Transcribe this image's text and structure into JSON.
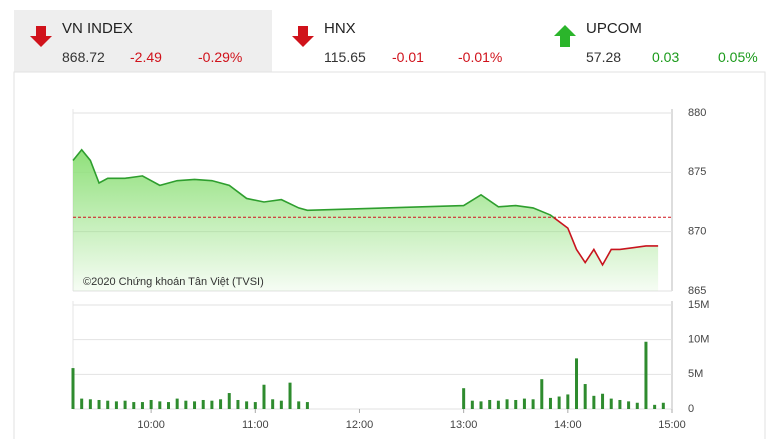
{
  "header": {
    "indices": [
      {
        "name": "VN INDEX",
        "value": "868.72",
        "change": "-2.49",
        "percent": "-0.29%"
      },
      {
        "name": "HNX",
        "value": "115.65",
        "change": "-0.01",
        "percent": "-0.01%"
      },
      {
        "name": "UPCOM",
        "value": "57.28",
        "change": "0.03",
        "percent": "0.05%"
      }
    ]
  },
  "chart_data": [
    {
      "type": "line",
      "area": true,
      "annotation": "©2020 Chứng khoán Tân Việt (TVSI)",
      "color": "#2e9e2e",
      "below_color": "#c8141e",
      "area_color": "#8fe07a",
      "reference": 871.21,
      "reference_color": "#d0121b",
      "x": [
        555,
        560,
        565,
        570,
        575,
        585,
        595,
        605,
        615,
        625,
        635,
        645,
        655,
        665,
        675,
        685,
        690,
        780,
        790,
        800,
        810,
        820,
        830,
        840,
        845,
        850,
        855,
        860,
        865,
        870,
        885,
        890,
        892
      ],
      "values": [
        876.0,
        876.9,
        876.0,
        874.1,
        874.5,
        874.5,
        874.7,
        873.9,
        874.3,
        874.4,
        874.3,
        873.9,
        872.8,
        872.5,
        872.7,
        872.0,
        871.8,
        872.2,
        873.1,
        872.1,
        872.2,
        872.0,
        871.4,
        870.3,
        868.5,
        867.4,
        868.5,
        867.2,
        868.5,
        868.5,
        868.8,
        868.8,
        868.8
      ],
      "xlim": [
        555,
        900
      ],
      "ylim": [
        865,
        880
      ],
      "yticks": [
        865,
        870,
        875,
        880
      ],
      "grid": true
    },
    {
      "type": "bar",
      "color": "#2e8b2e",
      "x": [
        555,
        560,
        565,
        570,
        575,
        580,
        585,
        590,
        595,
        600,
        605,
        610,
        615,
        620,
        625,
        630,
        635,
        640,
        645,
        650,
        655,
        660,
        665,
        670,
        675,
        680,
        685,
        690,
        780,
        785,
        790,
        795,
        800,
        805,
        810,
        815,
        820,
        825,
        830,
        835,
        840,
        845,
        850,
        855,
        860,
        865,
        870,
        875,
        880,
        885,
        890,
        895
      ],
      "values": [
        5.9,
        1.5,
        1.4,
        1.3,
        1.2,
        1.1,
        1.2,
        1.0,
        1.0,
        1.3,
        1.1,
        1.0,
        1.5,
        1.2,
        1.1,
        1.3,
        1.2,
        1.4,
        2.3,
        1.3,
        1.1,
        1.0,
        3.5,
        1.4,
        1.2,
        3.8,
        1.1,
        1.0,
        3.0,
        1.2,
        1.1,
        1.3,
        1.2,
        1.4,
        1.3,
        1.5,
        1.4,
        4.3,
        1.6,
        1.8,
        2.1,
        7.3,
        3.6,
        1.9,
        2.2,
        1.5,
        1.3,
        1.1,
        0.9,
        9.7,
        0.6,
        0.9
      ],
      "xlim": [
        555,
        900
      ],
      "ylim": [
        0,
        15
      ],
      "yticks": [
        0,
        {
          "value": 5,
          "label": "5M"
        },
        {
          "value": 10,
          "label": "10M"
        },
        {
          "value": 15,
          "label": "15M"
        }
      ],
      "xticks": [
        {
          "value": 600,
          "label": "10:00"
        },
        {
          "value": 660,
          "label": "11:00"
        },
        {
          "value": 720,
          "label": "12:00"
        },
        {
          "value": 780,
          "label": "13:00"
        },
        {
          "value": 840,
          "label": "14:00"
        },
        {
          "value": 900,
          "label": "15:00"
        }
      ],
      "grid": true
    }
  ]
}
